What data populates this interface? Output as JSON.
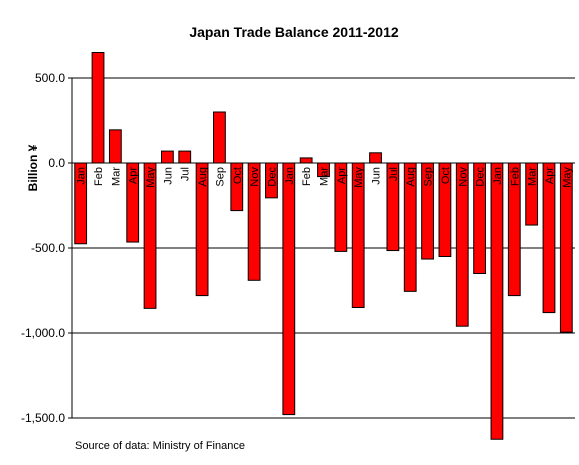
{
  "chart_data": {
    "type": "bar",
    "title": "Japan  Trade Balance 2011-2012",
    "ylabel": "Billion ¥",
    "xlabel": "",
    "source": "Source of data: Ministry of Finance",
    "ylim": [
      -1500,
      500
    ],
    "yticks": [
      500,
      0,
      -500,
      -1000,
      -1500
    ],
    "ytick_labels": [
      "500.0",
      "0.0",
      "-500.0",
      "-1,000.0",
      "-1,500.0"
    ],
    "grid": true,
    "bar_color": "#ff0000",
    "categories": [
      "Jan",
      "Feb",
      "Mar",
      "Apr",
      "May",
      "Jun",
      "Jul",
      "Aug",
      "Sep",
      "Oct",
      "Nov",
      "Dec",
      "Jan",
      "Feb",
      "Mar",
      "Apr",
      "May",
      "Jun",
      "Jul",
      "Aug",
      "Sep",
      "Oct",
      "Nov",
      "Dec",
      "Jan",
      "Feb",
      "Mar",
      "Apr",
      "May"
    ],
    "values": [
      -475,
      650,
      195,
      -465,
      -855,
      70,
      70,
      -780,
      300,
      -280,
      -690,
      -205,
      -1480,
      30,
      -80,
      -520,
      -850,
      60,
      -515,
      -755,
      -565,
      -550,
      -960,
      -650,
      -1625,
      -780,
      -365,
      -880,
      -995
    ]
  }
}
